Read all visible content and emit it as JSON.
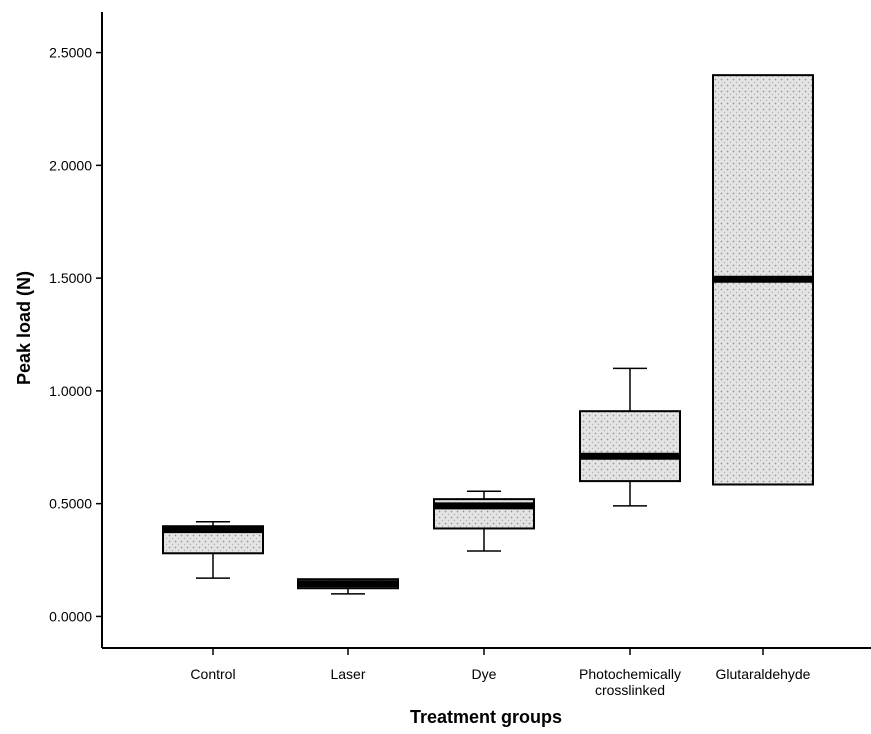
{
  "chart_data": {
    "type": "box",
    "xlabel": "Treatment groups",
    "ylabel": "Peak load (N)",
    "ylim": [
      -0.14,
      2.68
    ],
    "yticks": [
      0.0,
      0.5,
      1.0,
      1.5,
      2.0,
      2.5
    ],
    "ytick_labels": [
      "0.0000",
      "0.5000",
      "1.0000",
      "1.5000",
      "2.0000",
      "2.5000"
    ],
    "grid": false,
    "legend": "none",
    "box_fill": "#d4d4d4",
    "groups": [
      {
        "label_lines": [
          "Control"
        ],
        "min": 0.17,
        "q1": 0.28,
        "median": 0.385,
        "q3": 0.4,
        "max": 0.42
      },
      {
        "label_lines": [
          "Laser"
        ],
        "min": 0.1,
        "q1": 0.125,
        "median": 0.145,
        "q3": 0.165,
        "max": 0.165
      },
      {
        "label_lines": [
          "Dye"
        ],
        "min": 0.29,
        "q1": 0.39,
        "median": 0.49,
        "q3": 0.52,
        "max": 0.555
      },
      {
        "label_lines": [
          "Photochemically",
          "crosslinked"
        ],
        "min": 0.49,
        "q1": 0.6,
        "median": 0.71,
        "q3": 0.91,
        "max": 1.1
      },
      {
        "label_lines": [
          "Glutaraldehyde"
        ],
        "min": 0.585,
        "q1": 0.585,
        "median": 1.495,
        "q3": 2.4,
        "max": 2.4
      }
    ]
  }
}
